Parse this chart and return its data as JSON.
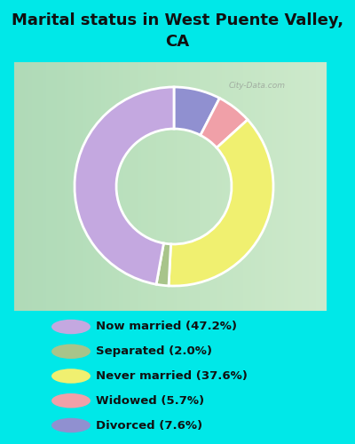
{
  "title": "Marital status in West Puente Valley,\nCA",
  "categories": [
    "Now married",
    "Separated",
    "Never married",
    "Widowed",
    "Divorced"
  ],
  "values": [
    47.2,
    2.0,
    37.6,
    5.7,
    7.6
  ],
  "colors": [
    "#c4a8e0",
    "#a8c48a",
    "#f0f070",
    "#f0a0a8",
    "#9090d0"
  ],
  "legend_labels": [
    "Now married (47.2%)",
    "Separated (2.0%)",
    "Never married (37.6%)",
    "Widowed (5.7%)",
    "Divorced (7.6%)"
  ],
  "bg_color": "#00e8e8",
  "chart_bg_left": "#c8e8c8",
  "chart_bg_right": "#e8f0e8",
  "title_fontsize": 13,
  "legend_fontsize": 9.5,
  "figsize": [
    4.0,
    5.0
  ],
  "dpi": 100,
  "watermark": "City-Data.com",
  "donut_width": 0.42,
  "startangle": 90,
  "wedge_order": [
    4,
    3,
    2,
    1,
    0
  ]
}
